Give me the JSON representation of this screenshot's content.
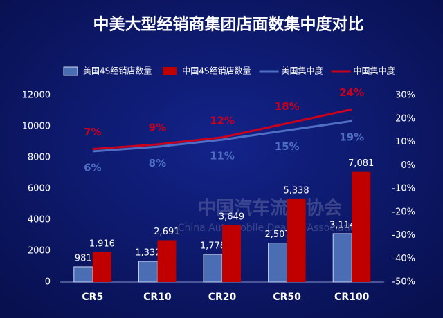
{
  "chart_data": {
    "type": "bar",
    "title": "中美大型经销商集团店面数集中度对比",
    "watermark": [
      "中国汽车流通协会",
      "China Automobile Dealers Association"
    ],
    "categories": [
      "CR5",
      "CR10",
      "CR20",
      "CR50",
      "CR100"
    ],
    "series": [
      {
        "name": "美国4S经销店数量",
        "type": "bar",
        "color": "#4a6db3",
        "values": [
          981,
          1332,
          1778,
          2507,
          3114
        ],
        "value_labels": [
          "981",
          "1,332",
          "1,778",
          "2,507",
          "3,114"
        ]
      },
      {
        "name": "中国4S经销店数量",
        "type": "bar",
        "color": "#c00000",
        "values": [
          1916,
          2691,
          3649,
          5338,
          7081
        ],
        "value_labels": [
          "1,916",
          "2,691",
          "3,649",
          "5,338",
          "7,081"
        ]
      },
      {
        "name": "美国集中度",
        "type": "line",
        "axis": "y2",
        "color": "#4f6fc4",
        "values": [
          6,
          8,
          11,
          15,
          19
        ],
        "value_labels": [
          "6%",
          "8%",
          "11%",
          "15%",
          "19%"
        ]
      },
      {
        "name": "中国集中度",
        "type": "line",
        "axis": "y2",
        "color": "#c8001e",
        "values": [
          7,
          9,
          12,
          18,
          24
        ],
        "value_labels": [
          "7%",
          "9%",
          "12%",
          "18%",
          "24%"
        ]
      }
    ],
    "ylim": [
      0,
      12000
    ],
    "yticks": [
      0,
      2000,
      4000,
      6000,
      8000,
      10000,
      12000
    ],
    "y2lim": [
      -50,
      30
    ],
    "y2ticks": [
      {
        "value": -50,
        "label": "-50%"
      },
      {
        "value": -40,
        "label": "-40%"
      },
      {
        "value": -30,
        "label": "-30%"
      },
      {
        "value": -20,
        "label": "-20%"
      },
      {
        "value": -10,
        "label": "-10%"
      },
      {
        "value": 0,
        "label": "0%"
      },
      {
        "value": 10,
        "label": "10%"
      },
      {
        "value": 20,
        "label": "20%"
      },
      {
        "value": 30,
        "label": "30%"
      }
    ],
    "legend": "top"
  }
}
